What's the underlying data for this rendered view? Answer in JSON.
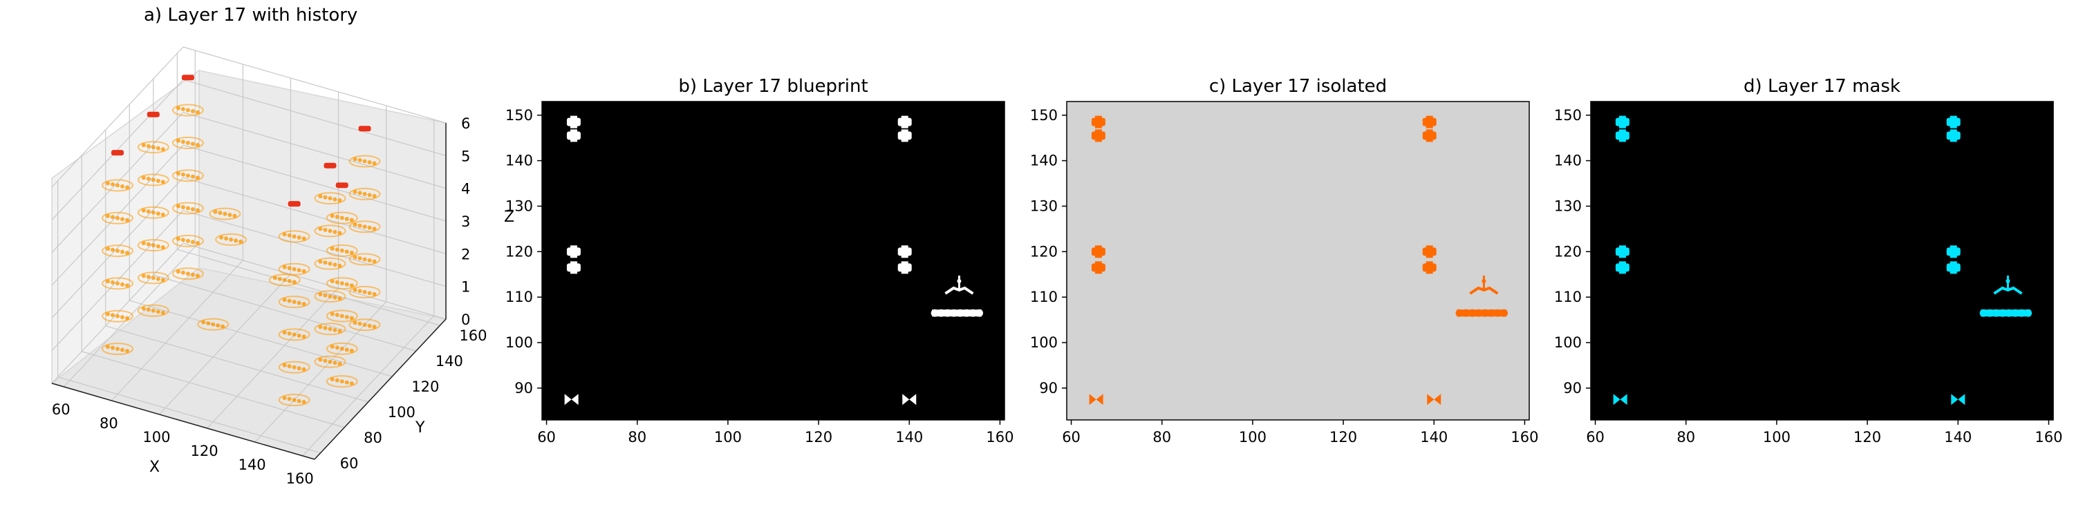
{
  "colors": {
    "history": "#ff9900",
    "current_layer": "#e8321a",
    "blueprint_bg": "#000000",
    "blueprint_fg": "#ffffff",
    "isolated_bg": "#d3d3d3",
    "isolated_fg": "#ff6a00",
    "mask_bg": "#000000",
    "mask_fg": "#00e5ff"
  },
  "chart_data": [
    {
      "type": "scatter3d",
      "title": "a) Layer 17 with history",
      "xlabel": "X",
      "ylabel": "Y",
      "zlabel": "Z",
      "xticks": [
        "60",
        "80",
        "100",
        "120",
        "140",
        "160"
      ],
      "yticks": [
        "60",
        "80",
        "100",
        "120",
        "140",
        "160"
      ],
      "zticks": [
        "0",
        "1",
        "2",
        "3",
        "4",
        "5",
        "6"
      ],
      "xlim": [
        55,
        165
      ],
      "ylim": [
        55,
        165
      ],
      "zlim": [
        0,
        6
      ],
      "series": [
        {
          "role": "history",
          "points": [
            [
              66,
              88,
              0
            ],
            [
              140,
              88,
              0
            ],
            [
              66,
              118,
              0
            ],
            [
              140,
              118,
              0
            ],
            [
              66,
              147,
              0
            ],
            [
              140,
              147,
              0
            ],
            [
              150,
              108,
              0
            ],
            [
              66,
              88,
              1
            ],
            [
              140,
              88,
              1
            ],
            [
              66,
              118,
              1
            ],
            [
              140,
              118,
              1
            ],
            [
              66,
              147,
              1
            ],
            [
              140,
              147,
              1
            ],
            [
              150,
              108,
              1
            ],
            [
              66,
              88,
              2
            ],
            [
              140,
              88,
              2
            ],
            [
              66,
              118,
              2
            ],
            [
              140,
              118,
              2
            ],
            [
              66,
              147,
              2
            ],
            [
              140,
              147,
              2
            ],
            [
              150,
              108,
              2
            ],
            [
              66,
              88,
              3
            ],
            [
              140,
              88,
              3
            ],
            [
              66,
              118,
              3
            ],
            [
              140,
              118,
              3
            ],
            [
              66,
              147,
              3
            ],
            [
              140,
              147,
              3
            ],
            [
              150,
              108,
              3
            ],
            [
              66,
              88,
              4
            ],
            [
              140,
              88,
              4
            ],
            [
              66,
              118,
              4
            ],
            [
              140,
              118,
              4
            ],
            [
              66,
              147,
              4
            ],
            [
              140,
              147,
              4
            ],
            [
              150,
              108,
              4
            ],
            [
              66,
              88,
              5
            ],
            [
              140,
              88,
              5
            ],
            [
              66,
              118,
              5
            ],
            [
              140,
              118,
              5
            ],
            [
              66,
              147,
              5
            ],
            [
              140,
              147,
              5
            ],
            [
              150,
              108,
              5
            ],
            [
              100,
              100,
              1
            ],
            [
              120,
              120,
              2
            ],
            [
              90,
              130,
              3
            ],
            [
              110,
              95,
              4
            ]
          ]
        },
        {
          "role": "current-layer",
          "points": [
            [
              66,
              88,
              6
            ],
            [
              140,
              88,
              6
            ],
            [
              66,
              118,
              6
            ],
            [
              140,
              118,
              6
            ],
            [
              66,
              147,
              6
            ],
            [
              140,
              147,
              6
            ],
            [
              150,
              108,
              6
            ]
          ]
        }
      ]
    },
    {
      "type": "scatter",
      "title": "b) Layer 17 blueprint",
      "xticks": [
        "60",
        "80",
        "100",
        "120",
        "140",
        "160"
      ],
      "yticks": [
        "90",
        "100",
        "110",
        "120",
        "130",
        "140",
        "150"
      ],
      "xlim": [
        59,
        161
      ],
      "ylim": [
        83,
        153
      ],
      "background": "#000000",
      "marker_color": "#ffffff",
      "features": [
        {
          "x": 66,
          "y": 148.5
        },
        {
          "x": 66,
          "y": 145.5
        },
        {
          "x": 139,
          "y": 148.5
        },
        {
          "x": 139,
          "y": 145.5
        },
        {
          "x": 66,
          "y": 120
        },
        {
          "x": 66,
          "y": 116.5
        },
        {
          "x": 139,
          "y": 120
        },
        {
          "x": 139,
          "y": 116.5
        },
        {
          "x": 65.5,
          "y": 87.5
        },
        {
          "x": 140,
          "y": 87.5
        },
        {
          "x": 151,
          "y": 112
        },
        {
          "x": 150.5,
          "y": 106.5
        }
      ]
    },
    {
      "type": "scatter",
      "title": "c) Layer 17 isolated",
      "xticks": [
        "60",
        "80",
        "100",
        "120",
        "140",
        "160"
      ],
      "yticks": [
        "90",
        "100",
        "110",
        "120",
        "130",
        "140",
        "150"
      ],
      "xlim": [
        59,
        161
      ],
      "ylim": [
        83,
        153
      ],
      "background": "#d3d3d3",
      "marker_color": "#ff6a00",
      "features": [
        {
          "x": 66,
          "y": 148.5
        },
        {
          "x": 66,
          "y": 145.5
        },
        {
          "x": 139,
          "y": 148.5
        },
        {
          "x": 139,
          "y": 145.5
        },
        {
          "x": 66,
          "y": 120
        },
        {
          "x": 66,
          "y": 116.5
        },
        {
          "x": 139,
          "y": 120
        },
        {
          "x": 139,
          "y": 116.5
        },
        {
          "x": 65.5,
          "y": 87.5
        },
        {
          "x": 140,
          "y": 87.5
        },
        {
          "x": 151,
          "y": 112
        },
        {
          "x": 150.5,
          "y": 106.5
        }
      ]
    },
    {
      "type": "scatter",
      "title": "d) Layer 17 mask",
      "xticks": [
        "60",
        "80",
        "100",
        "120",
        "140",
        "160"
      ],
      "yticks": [
        "90",
        "100",
        "110",
        "120",
        "130",
        "140",
        "150"
      ],
      "xlim": [
        59,
        161
      ],
      "ylim": [
        83,
        153
      ],
      "background": "#000000",
      "marker_color": "#00e5ff",
      "features": [
        {
          "x": 66,
          "y": 148.5
        },
        {
          "x": 66,
          "y": 145.5
        },
        {
          "x": 139,
          "y": 148.5
        },
        {
          "x": 139,
          "y": 145.5
        },
        {
          "x": 66,
          "y": 120
        },
        {
          "x": 66,
          "y": 116.5
        },
        {
          "x": 139,
          "y": 120
        },
        {
          "x": 139,
          "y": 116.5
        },
        {
          "x": 65.5,
          "y": 87.5
        },
        {
          "x": 140,
          "y": 87.5
        },
        {
          "x": 151,
          "y": 112
        },
        {
          "x": 150.5,
          "y": 106.5
        }
      ]
    }
  ]
}
